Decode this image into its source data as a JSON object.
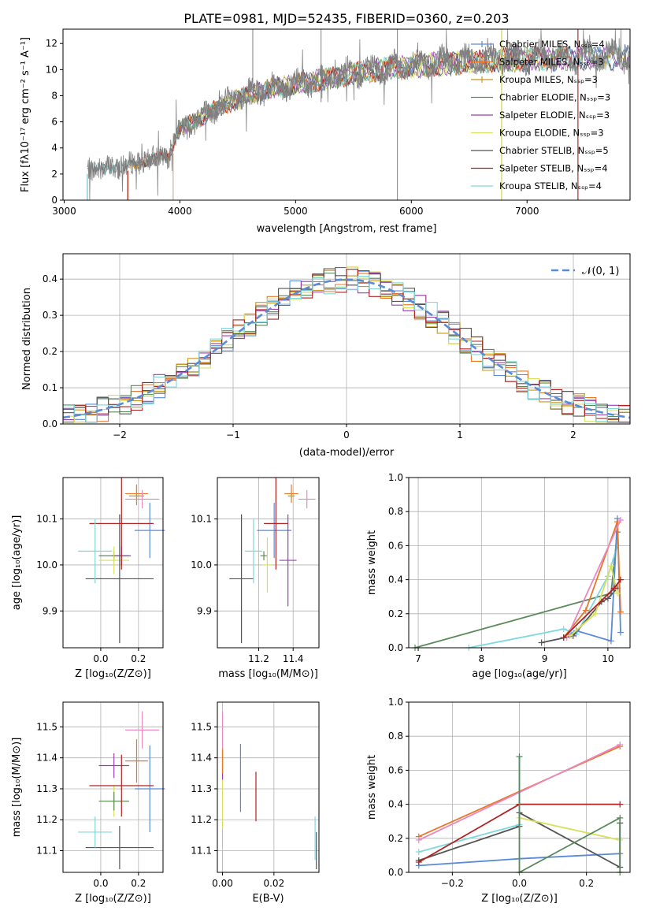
{
  "title": "PLATE=0981, MJD=52435, FIBERID=0360, z=0.203",
  "colors": {
    "chabrier_miles": "#5b8bd6",
    "salpeter_miles": "#e8772a",
    "kroupa_miles": "#c8961a",
    "chabrier_elodie": "#5a8a5a",
    "salpeter_elodie": "#9b3fb0",
    "kroupa_elodie": "#d6e05a",
    "chabrier_stelib": "#555555",
    "salpeter_stelib": "#b02020",
    "kroupa_stelib": "#7fd8dc",
    "pink": "#e889c0",
    "gaussian": "#5b8bd6",
    "grid": "#b0b0b0"
  },
  "chart_data": [
    {
      "id": "spectrum",
      "type": "line",
      "xlabel": "wavelength [Angstrom, rest frame]",
      "ylabel": "Flux [fλ10⁻¹⁷ erg cm⁻² s⁻¹ A⁻¹]",
      "xlim": [
        2990,
        7890
      ],
      "ylim": [
        0,
        13.1
      ],
      "xticks": [
        "3000",
        "4000",
        "5000",
        "6000",
        "7000"
      ],
      "yticks": [
        "0",
        "2",
        "4",
        "6",
        "8",
        "10",
        "12"
      ],
      "grid": false,
      "legend_position": "top-right",
      "legend": [
        "Chabrier MILES, Nₛₛₚ=4",
        "Salpeter MILES, Nₛₛₚ=3",
        "Kroupa MILES, Nₛₛₚ=3",
        "Chabrier ELODIE, Nₛₛₚ=3",
        "Salpeter ELODIE, Nₛₛₚ=3",
        "Kroupa ELODIE, Nₛₛₚ=3",
        "Chabrier STELIB, Nₛₛₚ=5",
        "Salpeter STELIB, Nₛₛₚ=4",
        "Kroupa STELIB, Nₛₛₚ=4"
      ],
      "data_envelope": {
        "x": [
          3200,
          3500,
          3900,
          4000,
          4200,
          4500,
          4800,
          5000,
          5300,
          5600,
          6000,
          6400,
          6800,
          7200,
          7600,
          7890
        ],
        "y": [
          2.5,
          2.7,
          3.6,
          5.8,
          6.8,
          8.2,
          9.0,
          9.3,
          9.8,
          10.4,
          10.8,
          11.1,
          11.3,
          11.4,
          11.5,
          11.5
        ]
      },
      "model_start_wavelengths": [
        3200,
        3550,
        3940
      ]
    },
    {
      "id": "residuals",
      "type": "histogram",
      "xlabel": "(data-model)/error",
      "ylabel": "Normed distribution",
      "xlim": [
        -2.5,
        2.5
      ],
      "ylim": [
        0,
        0.47
      ],
      "xticks": [
        "−2",
        "−1",
        "0",
        "1",
        "2"
      ],
      "yticks": [
        "0.0",
        "0.1",
        "0.2",
        "0.3",
        "0.4"
      ],
      "grid": true,
      "legend_position": "top-right",
      "legend": [
        "𝒩(0, 1)"
      ],
      "bin_width": 0.1
    },
    {
      "id": "age_vs_Z",
      "type": "scatter",
      "xlabel": "Z [log₁₀(Z/Z⊙)]",
      "ylabel": "age  [log₁₀(age/yr)]",
      "xlim": [
        -0.2,
        0.33
      ],
      "ylim": [
        9.82,
        10.19
      ],
      "xticks": [
        {
          "v": 0.0,
          "t": "0.0"
        },
        {
          "v": 0.2,
          "t": "0.2"
        }
      ],
      "yticks": [
        {
          "v": 9.9,
          "t": "9.9"
        },
        {
          "v": 10.0,
          "t": "10.0"
        },
        {
          "v": 10.1,
          "t": "10.1"
        }
      ],
      "grid": true,
      "points": [
        {
          "c": "chabrier_miles",
          "x": 0.26,
          "y": 10.075,
          "xe": 0.08,
          "ye": 0.06
        },
        {
          "c": "salpeter_miles",
          "x": 0.19,
          "y": 10.155,
          "xe": 0.06,
          "ye": 0.02
        },
        {
          "c": "kroupa_miles",
          "x": 0.19,
          "y": 10.15,
          "xe": 0.04,
          "ye": 0.02
        },
        {
          "c": "pink",
          "x": 0.22,
          "y": 10.143,
          "xe": 0.09,
          "ye": 0.02
        },
        {
          "c": "chabrier_elodie",
          "x": 0.07,
          "y": 10.02,
          "xe": 0.08,
          "ye": 0.01
        },
        {
          "c": "salpeter_elodie",
          "x": 0.11,
          "y": 10.02,
          "xe": 0.05,
          "ye": 0.02
        },
        {
          "c": "kroupa_elodie",
          "x": 0.07,
          "y": 10.01,
          "xe": 0.08,
          "ye": 0.03
        },
        {
          "c": "chabrier_stelib",
          "x": 0.1,
          "y": 9.97,
          "xe": 0.18,
          "ye": 0.14
        },
        {
          "c": "salpeter_stelib",
          "x": 0.11,
          "y": 10.09,
          "xe": 0.17,
          "ye": 0.1
        },
        {
          "c": "kroupa_stelib",
          "x": -0.03,
          "y": 10.03,
          "xe": 0.09,
          "ye": 0.07
        }
      ]
    },
    {
      "id": "age_vs_mass",
      "type": "scatter",
      "xlabel": "mass [log₁₀(M/M⊙)]",
      "ylabel": "",
      "xlim": [
        10.96,
        11.55
      ],
      "ylim": [
        9.82,
        10.19
      ],
      "xticks": [
        {
          "v": 11.2,
          "t": "11.2"
        },
        {
          "v": 11.4,
          "t": "11.4"
        }
      ],
      "yticks": [
        {
          "v": 9.9,
          "t": "9.9"
        },
        {
          "v": 10.0,
          "t": "10.0"
        },
        {
          "v": 10.1,
          "t": "10.1"
        }
      ],
      "grid": true,
      "points": [
        {
          "c": "chabrier_miles",
          "x": 11.29,
          "y": 10.075,
          "xe": 0.1,
          "ye": 0.06
        },
        {
          "c": "salpeter_miles",
          "x": 11.39,
          "y": 10.155,
          "xe": 0.04,
          "ye": 0.02
        },
        {
          "c": "kroupa_miles",
          "x": 11.39,
          "y": 10.15,
          "xe": 0.02,
          "ye": 0.01
        },
        {
          "c": "pink",
          "x": 11.48,
          "y": 10.143,
          "xe": 0.05,
          "ye": 0.02
        },
        {
          "c": "chabrier_elodie",
          "x": 11.23,
          "y": 10.02,
          "xe": 0.02,
          "ye": 0.01
        },
        {
          "c": "salpeter_elodie",
          "x": 11.37,
          "y": 10.01,
          "xe": 0.05,
          "ye": 0.1
        },
        {
          "c": "kroupa_elodie",
          "x": 11.25,
          "y": 10.0,
          "xe": 0.03,
          "ye": 0.06
        },
        {
          "c": "chabrier_stelib",
          "x": 11.1,
          "y": 9.97,
          "xe": 0.07,
          "ye": 0.14
        },
        {
          "c": "salpeter_stelib",
          "x": 11.3,
          "y": 10.09,
          "xe": 0.07,
          "ye": 0.1
        },
        {
          "c": "kroupa_stelib",
          "x": 11.17,
          "y": 10.03,
          "xe": 0.05,
          "ye": 0.07
        }
      ]
    },
    {
      "id": "weights_vs_age",
      "type": "line",
      "xlabel": "age  [log₁₀(age/yr)]",
      "ylabel": "mass weight",
      "xlim": [
        6.85,
        10.35
      ],
      "ylim": [
        0,
        1.0
      ],
      "xticks": [
        {
          "v": 7,
          "t": "7"
        },
        {
          "v": 8,
          "t": "8"
        },
        {
          "v": 9,
          "t": "9"
        },
        {
          "v": 10,
          "t": "10"
        }
      ],
      "yticks": [
        {
          "v": 0,
          "t": "0.0"
        },
        {
          "v": 0.2,
          "t": "0.2"
        },
        {
          "v": 0.4,
          "t": "0.4"
        },
        {
          "v": 0.6,
          "t": "0.6"
        },
        {
          "v": 0.8,
          "t": "0.8"
        },
        {
          "v": 1.0,
          "t": "1.0"
        }
      ],
      "grid": true,
      "series": [
        {
          "c": "chabrier_elodie",
          "x": [
            6.95,
            10.05,
            10.15
          ],
          "y": [
            0.0,
            0.32,
            0.68
          ]
        },
        {
          "c": "kroupa_stelib",
          "x": [
            7.8,
            9.3,
            9.5,
            10.0,
            10.15
          ],
          "y": [
            0.0,
            0.11,
            0.08,
            0.42,
            0.6
          ]
        },
        {
          "c": "chabrier_stelib",
          "x": [
            8.95,
            9.45,
            9.9,
            10.0,
            10.15
          ],
          "y": [
            0.03,
            0.07,
            0.27,
            0.29,
            0.35
          ]
        },
        {
          "c": "chabrier_miles",
          "x": [
            9.3,
            9.5,
            10.05,
            10.15,
            10.2
          ],
          "y": [
            0.06,
            0.1,
            0.04,
            0.76,
            0.09
          ]
        },
        {
          "c": "salpeter_miles",
          "x": [
            9.3,
            9.65,
            10.15,
            10.2
          ],
          "y": [
            0.06,
            0.22,
            0.74,
            0.21
          ]
        },
        {
          "c": "pink",
          "x": [
            9.35,
            10.2
          ],
          "y": [
            0.06,
            0.75
          ]
        },
        {
          "c": "kroupa_elodie",
          "x": [
            9.4,
            9.8,
            10.05,
            10.15
          ],
          "y": [
            0.07,
            0.2,
            0.48,
            0.32
          ]
        },
        {
          "c": "salpeter_stelib",
          "x": [
            9.3,
            10.1,
            10.2
          ],
          "y": [
            0.06,
            0.35,
            0.4
          ]
        }
      ]
    },
    {
      "id": "mass_vs_Z",
      "type": "scatter",
      "xlabel": "Z [log₁₀(Z/Z⊙)]",
      "ylabel": "mass [log₁₀(M/M⊙)]",
      "xlim": [
        -0.2,
        0.33
      ],
      "ylim": [
        11.03,
        11.58
      ],
      "xticks": [
        {
          "v": 0.0,
          "t": "0.0"
        },
        {
          "v": 0.2,
          "t": "0.2"
        }
      ],
      "yticks": [
        {
          "v": 11.1,
          "t": "11.1"
        },
        {
          "v": 11.2,
          "t": "11.2"
        },
        {
          "v": 11.3,
          "t": "11.3"
        },
        {
          "v": 11.4,
          "t": "11.4"
        },
        {
          "v": 11.5,
          "t": "11.5"
        }
      ],
      "grid": true,
      "points": [
        {
          "c": "chabrier_miles",
          "x": 0.26,
          "y": 11.3,
          "xe": 0.08,
          "ye": 0.14
        },
        {
          "c": "salpeter_miles",
          "x": 0.19,
          "y": 11.39,
          "xe": 0.06,
          "ye": 0.07
        },
        {
          "c": "pink",
          "x": 0.22,
          "y": 11.49,
          "xe": 0.09,
          "ye": 0.06
        },
        {
          "c": "salpeter_elodie",
          "x": 0.07,
          "y": 11.375,
          "xe": 0.08,
          "ye": 0.04
        },
        {
          "c": "kroupa_elodie",
          "x": 0.07,
          "y": 11.26,
          "xe": 0.08,
          "ye": 0.05
        },
        {
          "c": "chabrier_elodie",
          "x": 0.07,
          "y": 11.26,
          "xe": 0.08,
          "ye": 0.03
        },
        {
          "c": "salpeter_stelib",
          "x": 0.11,
          "y": 11.31,
          "xe": 0.17,
          "ye": 0.1
        },
        {
          "c": "chabrier_stelib",
          "x": 0.1,
          "y": 11.11,
          "xe": 0.18,
          "ye": 0.07
        },
        {
          "c": "kroupa_stelib",
          "x": -0.03,
          "y": 11.16,
          "xe": 0.09,
          "ye": 0.05
        }
      ]
    },
    {
      "id": "mass_vs_EBV",
      "type": "scatter",
      "xlabel": "E(B-V)",
      "ylabel": "",
      "xlim": [
        -0.002,
        0.0375
      ],
      "ylim": [
        11.03,
        11.58
      ],
      "xticks": [
        {
          "v": 0.0,
          "t": "0.00"
        },
        {
          "v": 0.02,
          "t": "0.02"
        }
      ],
      "yticks": [
        {
          "v": 11.1,
          "t": "11.1"
        },
        {
          "v": 11.2,
          "t": "11.2"
        },
        {
          "v": 11.3,
          "t": "11.3"
        },
        {
          "v": 11.4,
          "t": "11.4"
        },
        {
          "v": 11.5,
          "t": "11.5"
        }
      ],
      "grid": true,
      "points": [
        {
          "c": "pink",
          "x": 0.0,
          "y": 11.49,
          "xe": 0.0,
          "ye": 0.06
        },
        {
          "c": "salpeter_elodie",
          "x": 0.0,
          "y": 11.375,
          "xe": 0.0,
          "ye": 0.05
        },
        {
          "c": "salpeter_miles",
          "x": 0.0,
          "y": 11.39,
          "xe": 0.0,
          "ye": 0.04
        },
        {
          "c": "kroupa_elodie",
          "x": 0.0,
          "y": 11.25,
          "xe": 0.0,
          "ye": 0.08
        },
        {
          "c": "chabrier_miles",
          "x": 0.007,
          "y": 11.335,
          "xe": 0.0,
          "ye": 0.11
        },
        {
          "c": "salpeter_stelib",
          "x": 0.013,
          "y": 11.275,
          "xe": 0.0,
          "ye": 0.08
        },
        {
          "c": "kroupa_stelib",
          "x": 0.036,
          "y": 11.14,
          "xe": 0.0,
          "ye": 0.07
        },
        {
          "c": "chabrier_stelib",
          "x": 0.0365,
          "y": 11.1,
          "xe": 0.0,
          "ye": 0.06
        }
      ]
    },
    {
      "id": "weights_vs_Z",
      "type": "line",
      "xlabel": "Z [log₁₀(Z/Z⊙)]",
      "ylabel": "mass weight",
      "xlim": [
        -0.33,
        0.33
      ],
      "ylim": [
        0,
        1.0
      ],
      "xticks": [
        {
          "v": -0.2,
          "t": "−0.2"
        },
        {
          "v": 0.0,
          "t": "0.0"
        },
        {
          "v": 0.2,
          "t": "0.2"
        }
      ],
      "yticks": [
        {
          "v": 0,
          "t": "0.0"
        },
        {
          "v": 0.2,
          "t": "0.2"
        },
        {
          "v": 0.4,
          "t": "0.4"
        },
        {
          "v": 0.6,
          "t": "0.6"
        },
        {
          "v": 0.8,
          "t": "0.8"
        },
        {
          "v": 1.0,
          "t": "1.0"
        }
      ],
      "grid": true,
      "series": [
        {
          "c": "chabrier_miles",
          "x": [
            -0.3,
            0.0,
            0.3
          ],
          "y": [
            0.04,
            0.08,
            0.11
          ]
        },
        {
          "c": "salpeter_miles",
          "x": [
            -0.3,
            0.3
          ],
          "y": [
            0.21,
            0.74
          ]
        },
        {
          "c": "pink",
          "x": [
            -0.3,
            0.3
          ],
          "y": [
            0.19,
            0.75
          ]
        },
        {
          "c": "kroupa_stelib",
          "x": [
            -0.3,
            0.0,
            0.0
          ],
          "y": [
            0.12,
            0.28,
            0.68
          ]
        },
        {
          "c": "chabrier_stelib",
          "x": [
            -0.3,
            0.0,
            0.0,
            0.3,
            0.3
          ],
          "y": [
            0.07,
            0.27,
            0.35,
            0.03,
            0.29
          ]
        },
        {
          "c": "salpeter_stelib",
          "x": [
            -0.3,
            0.0,
            0.3
          ],
          "y": [
            0.06,
            0.4,
            0.4
          ]
        },
        {
          "c": "kroupa_elodie",
          "x": [
            0.0,
            0.3
          ],
          "y": [
            0.32,
            0.19
          ]
        },
        {
          "c": "chabrier_elodie",
          "x": [
            0.0,
            0.0,
            0.3,
            0.3
          ],
          "y": [
            0.68,
            0.0,
            0.32,
            0.0
          ]
        }
      ]
    }
  ]
}
